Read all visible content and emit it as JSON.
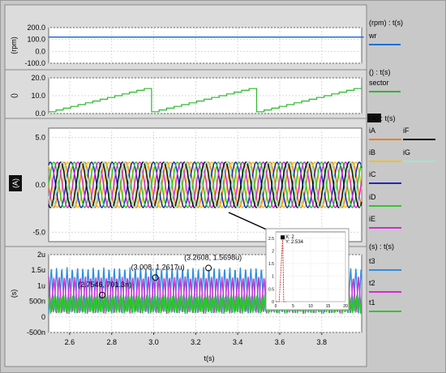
{
  "chart_data": [
    {
      "type": "line",
      "panel": "speed",
      "ylabel": "(rpm)",
      "legend_title": "(rpm) : t(s)",
      "yticks": [
        "200.0",
        "100.0",
        "0.0",
        "-100.0"
      ],
      "ylim": [
        -100,
        200
      ],
      "series": [
        {
          "name": "wr",
          "color": "#1f6fd6",
          "x": [
            2.5,
            4.0
          ],
          "y": [
            120,
            120
          ]
        }
      ]
    },
    {
      "type": "line",
      "panel": "sector",
      "ylabel": "()",
      "legend_title": "() : t(s)",
      "yticks": [
        "20.0",
        "10.0",
        "0.0"
      ],
      "ylim": [
        0,
        20
      ],
      "series": [
        {
          "name": "sector",
          "color": "#2db82d",
          "ramp_min": 1,
          "ramp_max": 14,
          "ramp_start": 2.5,
          "resets": [
            2.5,
            2.99,
            3.49,
            3.99
          ],
          "period": 0.5
        }
      ]
    },
    {
      "type": "line",
      "panel": "currents",
      "ylabel": "(A)",
      "legend_title": "(A) : t(s)",
      "yticks": [
        "5.0",
        "0.0",
        "-5.0"
      ],
      "ylim": [
        -6,
        6
      ],
      "amplitude": 2.4,
      "frequency_hz": 10.2,
      "series": [
        {
          "name": "iA",
          "color": "#f07f1f",
          "phase_deg": 0
        },
        {
          "name": "iB",
          "color": "#f0c020",
          "phase_deg": 60
        },
        {
          "name": "iC",
          "color": "#1a2ab8",
          "phase_deg": 120
        },
        {
          "name": "iD",
          "color": "#2ec72e",
          "phase_deg": 180
        },
        {
          "name": "iE",
          "color": "#d42ad4",
          "phase_deg": 240
        },
        {
          "name": "iF",
          "color": "#111111",
          "phase_deg": 300
        },
        {
          "name": "iG",
          "color": "#9ee8c8",
          "phase_deg": 330
        }
      ]
    },
    {
      "type": "line",
      "panel": "times",
      "ylabel": "(s)",
      "legend_title": "(s) : t(s)",
      "yticks": [
        "2u",
        "1.5u",
        "1u",
        "500n",
        "0",
        "-500n"
      ],
      "ylim": [
        -5e-07,
        2e-06
      ],
      "xticks": [
        "2.6",
        "2.8",
        "3.0",
        "3.2",
        "3.4",
        "3.6",
        "3.8"
      ],
      "xtick_values": [
        2.6,
        2.8,
        3.0,
        3.2,
        3.4,
        3.6,
        3.8
      ],
      "xlim": [
        2.5,
        3.99
      ],
      "xlabel": "t(s)",
      "series": [
        {
          "name": "t3",
          "color": "#2f8fe0",
          "min": 1e-07,
          "max": 1.6e-06
        },
        {
          "name": "t2",
          "color": "#d42ad4",
          "min": 1e-07,
          "max": 1.3e-06
        },
        {
          "name": "t1",
          "color": "#2ec72e",
          "min": 1e-07,
          "max": 7e-07
        }
      ],
      "annotations": [
        {
          "text": "(2.7546, 701.3n)",
          "x": 2.7546,
          "y": 7.013e-07
        },
        {
          "text": "(3.008, 1.2617u)",
          "x": 3.008,
          "y": 1.2617e-06
        },
        {
          "text": "(3.2608, 1.5698u)",
          "x": 3.2608,
          "y": 1.5698e-06
        }
      ]
    }
  ],
  "inset": {
    "label_x": "X: 2",
    "label_y": "Y: 2.534",
    "xticks": [
      "0",
      "5",
      "10",
      "15",
      "20"
    ],
    "yticks": [
      "2.5",
      "2",
      "1.5",
      "1",
      "0.5",
      "0"
    ],
    "xlim": [
      0,
      20
    ],
    "ylim": [
      0,
      2.75
    ],
    "series": {
      "color": "#cc3333",
      "x": [
        0,
        1,
        2,
        2.3,
        3
      ],
      "y": [
        0,
        0,
        2.534,
        0,
        0
      ]
    },
    "marker": {
      "x": 2,
      "y": 2.534
    }
  }
}
